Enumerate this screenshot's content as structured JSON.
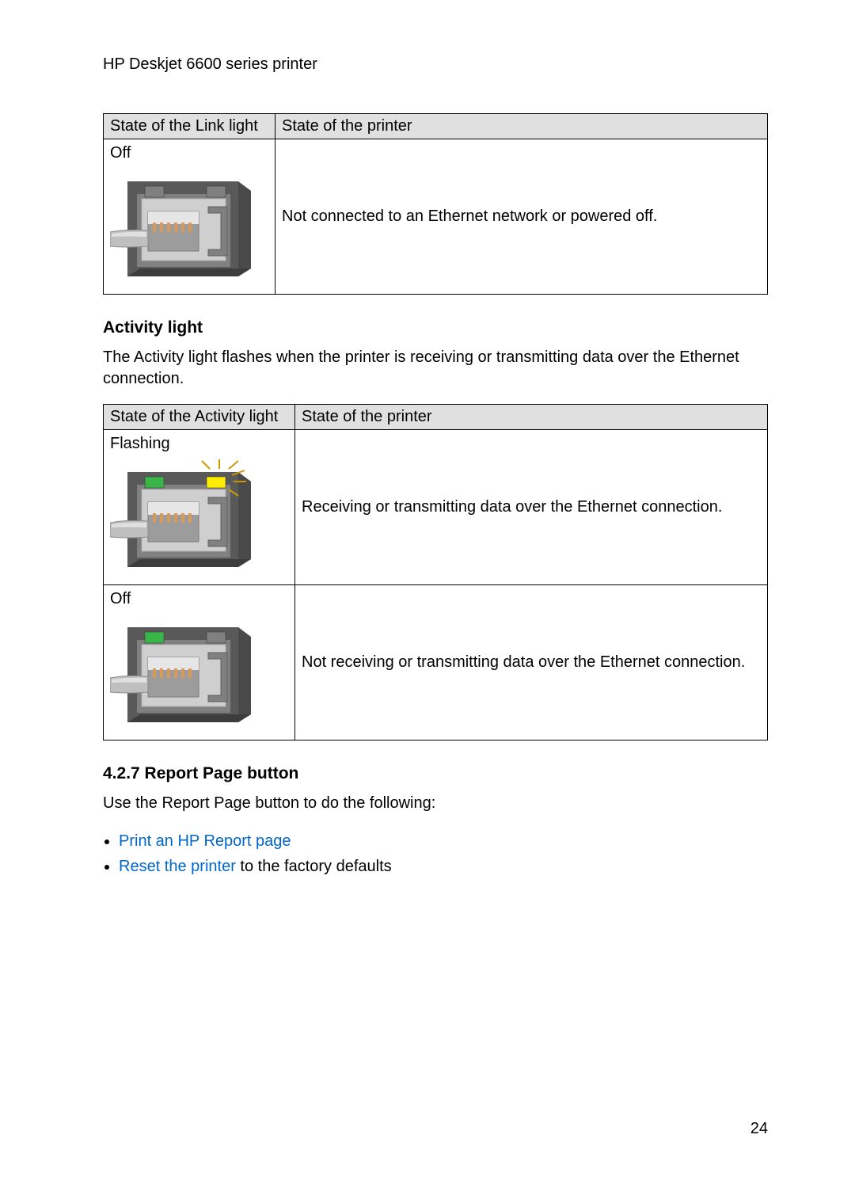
{
  "header": {
    "title": "HP Deskjet 6600 series printer"
  },
  "table1": {
    "headers": [
      "State of the Link light",
      "State of the printer"
    ],
    "row": {
      "state": "Off",
      "desc": "Not connected to an Ethernet network or powered off."
    }
  },
  "section_activity": {
    "heading": "Activity light",
    "para": "The Activity light flashes when the printer is receiving or transmitting data over the Ethernet connection."
  },
  "table2": {
    "headers": [
      "State of the Activity light",
      "State of the printer"
    ],
    "rows": [
      {
        "state": "Flashing",
        "desc": "Receiving or transmitting data over the Ethernet connection."
      },
      {
        "state": "Off",
        "desc": "Not receiving or transmitting data over the Ethernet connection."
      }
    ]
  },
  "section_report": {
    "heading": "4.2.7  Report Page button",
    "intro": "Use the Report Page button to do the following:",
    "bullet1_link": "Print an HP Report page",
    "bullet2_link": "Reset the printer",
    "bullet2_rest": " to the factory defaults"
  },
  "page_number": "24",
  "svg_port": {
    "width": 180,
    "height": 150,
    "colors": {
      "housing_outer": "#595959",
      "housing_inner": "#808080",
      "plate": "#cfcfcf",
      "plate_stroke": "#b0b0b0",
      "clip_top": "#e6e6e6",
      "bracket": "#808080",
      "cable_sheath": "#bfbfbf",
      "cable_highlight": "#e0e0e0",
      "led_green": "#39b54a",
      "led_off": "#808080",
      "led_yellow": "#ffeb00",
      "flash_line": "#cc9900",
      "contacts": "#d89a5a"
    }
  }
}
